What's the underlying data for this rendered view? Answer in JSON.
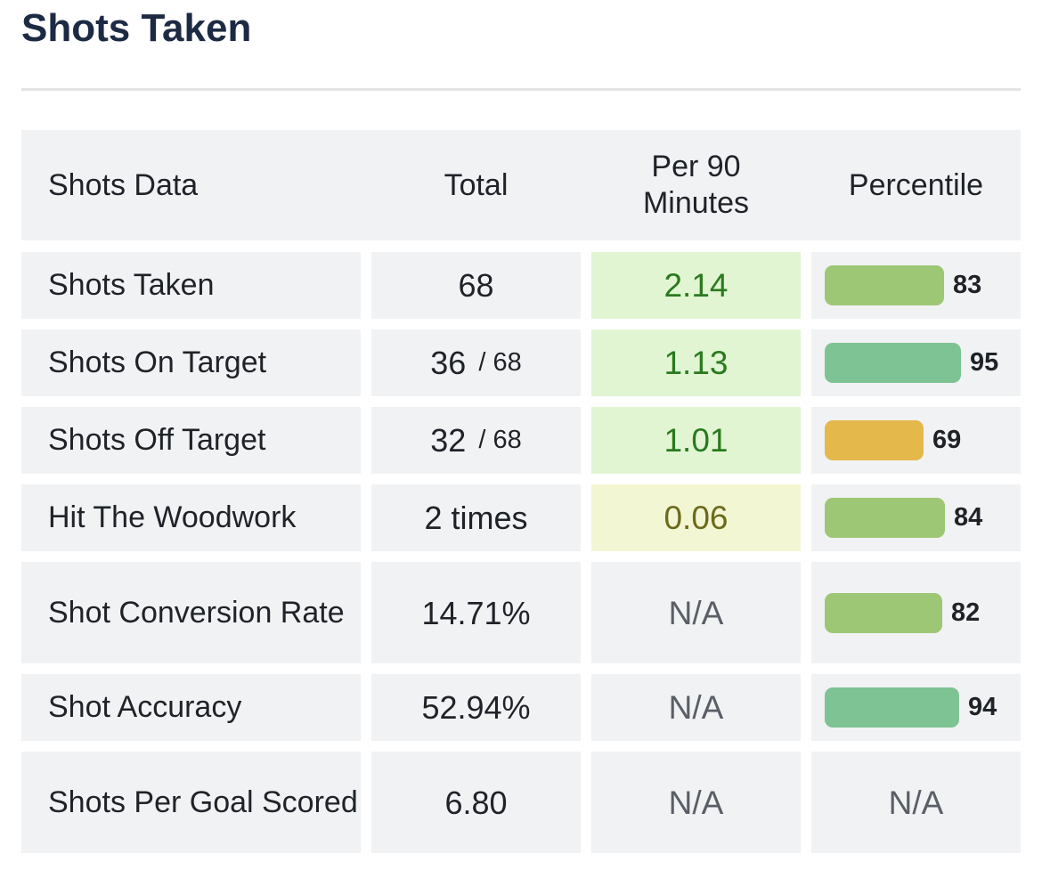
{
  "title": "Shots Taken",
  "table": {
    "headers": {
      "name": "Shots Data",
      "total": "Total",
      "per90_line1": "Per 90",
      "per90_line2": "Minutes",
      "percentile": "Percentile"
    },
    "rows": [
      {
        "name": "Shots Taken",
        "total": "68",
        "total_sub": "",
        "per90": "2.14",
        "per90_style": "green",
        "percentile": 83,
        "percentile_label": "83",
        "bar_color": "#9dc774"
      },
      {
        "name": "Shots On Target",
        "total": "36",
        "total_sub": "/ 68",
        "per90": "1.13",
        "per90_style": "green",
        "percentile": 95,
        "percentile_label": "95",
        "bar_color": "#7dc393"
      },
      {
        "name": "Shots Off Target",
        "total": "32",
        "total_sub": "/ 68",
        "per90": "1.01",
        "per90_style": "green",
        "percentile": 69,
        "percentile_label": "69",
        "bar_color": "#e5b84c"
      },
      {
        "name": "Hit The Woodwork",
        "total": "2 times",
        "total_sub": "",
        "per90": "0.06",
        "per90_style": "yellow",
        "percentile": 84,
        "percentile_label": "84",
        "bar_color": "#9dc774"
      },
      {
        "name": "Shot Conversion Rate",
        "total": "14.71%",
        "total_sub": "",
        "per90": "N/A",
        "per90_style": "na",
        "percentile": 82,
        "percentile_label": "82",
        "bar_color": "#9dc774"
      },
      {
        "name": "Shot Accuracy",
        "total": "52.94%",
        "total_sub": "",
        "per90": "N/A",
        "per90_style": "na",
        "percentile": 94,
        "percentile_label": "94",
        "bar_color": "#7dc393"
      },
      {
        "name": "Shots Per Goal Scored",
        "total": "6.80",
        "total_sub": "",
        "per90": "N/A",
        "per90_style": "na",
        "percentile": null,
        "percentile_label": "N/A",
        "bar_color": ""
      }
    ]
  }
}
